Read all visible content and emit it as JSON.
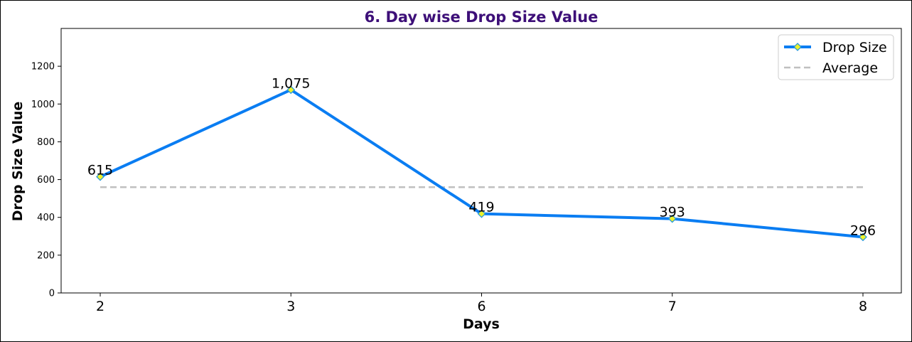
{
  "chart_data": {
    "type": "line",
    "title": "6. Day wise Drop Size Value",
    "xlabel": "Days",
    "ylabel": "Drop Size Value",
    "categories": [
      "2",
      "3",
      "6",
      "7",
      "8"
    ],
    "series": [
      {
        "name": "Drop Size",
        "values": [
          615,
          1075,
          419,
          393,
          296
        ],
        "labels": [
          "615",
          "1,075",
          "419",
          "393",
          "296"
        ],
        "color": "#0a7df2",
        "marker_face": "#eef22a",
        "marker_edge": "#2a9ad8"
      },
      {
        "name": "Average",
        "values": [
          560,
          560,
          560,
          560,
          560
        ],
        "color": "#c0c0c0",
        "style": "dashed"
      }
    ],
    "ylim": [
      0,
      1400
    ],
    "yticks": [
      0,
      200,
      400,
      600,
      800,
      1000,
      1200
    ],
    "grid": false,
    "legend": "top-right",
    "title_color": "#3d0f78"
  }
}
